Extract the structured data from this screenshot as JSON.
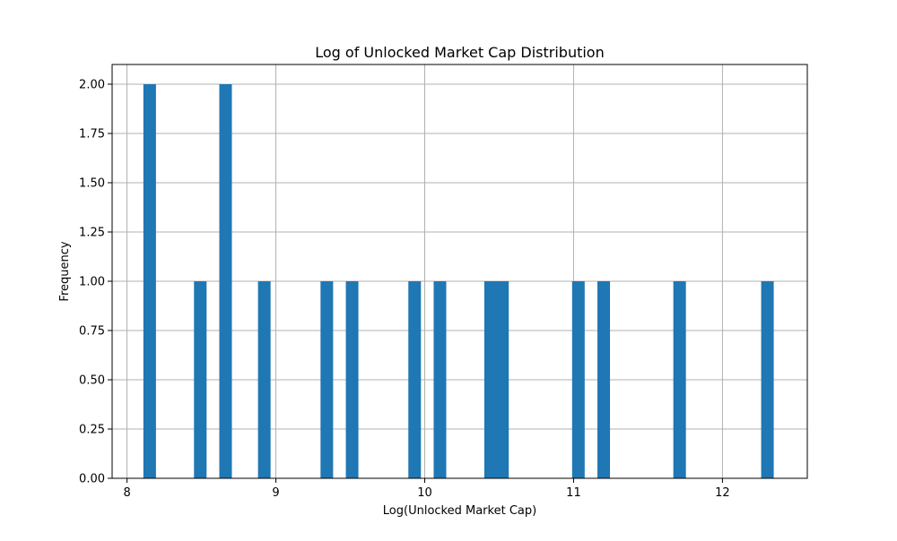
{
  "chart_data": {
    "type": "bar",
    "title": "Log of Unlocked Market Cap Distribution",
    "xlabel": "Log(Unlocked Market Cap)",
    "ylabel": "Frequency",
    "xlim": [
      7.9,
      12.57
    ],
    "ylim": [
      0,
      2.1
    ],
    "xticks": [
      8,
      9,
      10,
      11,
      12
    ],
    "xtick_labels": [
      "8",
      "9",
      "10",
      "11",
      "12"
    ],
    "yticks": [
      0,
      0.25,
      0.5,
      0.75,
      1.0,
      1.25,
      1.5,
      1.75,
      2.0
    ],
    "ytick_labels": [
      "0.00",
      "0.25",
      "0.50",
      "0.75",
      "1.00",
      "1.25",
      "1.50",
      "1.75",
      "2.00"
    ],
    "grid": true,
    "bar_color": "#1f77b4",
    "bin_width": 0.0845,
    "bins": [
      {
        "x_start": 8.11,
        "count": 2
      },
      {
        "x_start": 8.45,
        "count": 1
      },
      {
        "x_start": 8.62,
        "count": 2
      },
      {
        "x_start": 8.88,
        "count": 1
      },
      {
        "x_start": 9.3,
        "count": 1
      },
      {
        "x_start": 9.47,
        "count": 1
      },
      {
        "x_start": 9.89,
        "count": 1
      },
      {
        "x_start": 10.06,
        "count": 1
      },
      {
        "x_start": 10.4,
        "count": 1
      },
      {
        "x_start": 10.48,
        "count": 1
      },
      {
        "x_start": 10.99,
        "count": 1
      },
      {
        "x_start": 11.16,
        "count": 1
      },
      {
        "x_start": 11.67,
        "count": 1
      },
      {
        "x_start": 12.26,
        "count": 1
      }
    ]
  }
}
